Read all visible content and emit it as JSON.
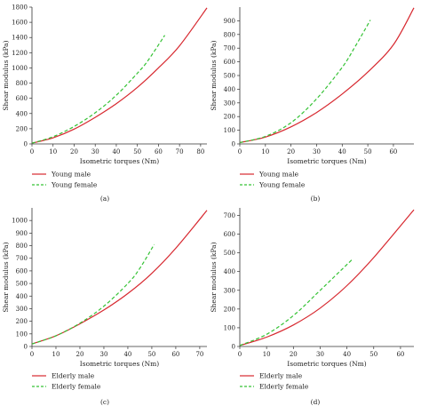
{
  "chart_data": [
    {
      "type": "line",
      "panel_label": "(a)",
      "xlabel": "Isometric torques (Nm)",
      "ylabel": "Shear modulus (kPa)",
      "xlim": [
        0,
        83
      ],
      "ylim": [
        0,
        1800
      ],
      "xticks": [
        0,
        10,
        20,
        30,
        40,
        50,
        60,
        70,
        80
      ],
      "yticks": [
        0,
        200,
        400,
        600,
        800,
        1000,
        1200,
        1400,
        1600,
        1800
      ],
      "legend_position": "bottom-left-outside",
      "series": [
        {
          "name": "Young male",
          "color": "#d7282f",
          "dash": "solid",
          "x": [
            0,
            10,
            20,
            30,
            40,
            50,
            60,
            70,
            83
          ],
          "y": [
            10,
            80,
            195,
            350,
            530,
            745,
            1000,
            1290,
            1790
          ]
        },
        {
          "name": "Young female",
          "color": "#35c235",
          "dash": "dashed",
          "x": [
            0,
            10,
            20,
            30,
            40,
            50,
            55,
            63
          ],
          "y": [
            10,
            95,
            230,
            410,
            640,
            930,
            1095,
            1430
          ]
        }
      ]
    },
    {
      "type": "line",
      "panel_label": "(b)",
      "xlabel": "Isometric torques (Nm)",
      "ylabel": "Shear modulus (kPa)",
      "xlim": [
        0,
        68
      ],
      "ylim": [
        0,
        1000
      ],
      "xticks": [
        0,
        10,
        20,
        30,
        40,
        50,
        60
      ],
      "yticks": [
        0,
        100,
        200,
        300,
        400,
        500,
        600,
        700,
        800,
        900
      ],
      "legend_position": "bottom-left-outside",
      "series": [
        {
          "name": "Young male",
          "color": "#d7282f",
          "dash": "solid",
          "x": [
            0,
            10,
            20,
            30,
            40,
            50,
            60,
            68
          ],
          "y": [
            10,
            50,
            125,
            230,
            365,
            525,
            725,
            995
          ]
        },
        {
          "name": "Young female",
          "color": "#35c235",
          "dash": "dashed",
          "x": [
            0,
            10,
            20,
            30,
            40,
            45,
            51
          ],
          "y": [
            10,
            55,
            155,
            330,
            560,
            710,
            905
          ]
        }
      ]
    },
    {
      "type": "line",
      "panel_label": "(c)",
      "xlabel": "Isometric torques (Nm)",
      "ylabel": "Shear modulus (kPa)",
      "xlim": [
        0,
        73
      ],
      "ylim": [
        0,
        1100
      ],
      "xticks": [
        0,
        10,
        20,
        30,
        40,
        50,
        60,
        70
      ],
      "yticks": [
        0,
        100,
        200,
        300,
        400,
        500,
        600,
        700,
        800,
        900,
        1000
      ],
      "legend_position": "bottom-left-outside",
      "series": [
        {
          "name": "Elderly male",
          "color": "#d7282f",
          "dash": "solid",
          "x": [
            0,
            10,
            20,
            30,
            40,
            50,
            60,
            73
          ],
          "y": [
            20,
            85,
            180,
            290,
            420,
            580,
            780,
            1080
          ]
        },
        {
          "name": "Elderly female",
          "color": "#35c235",
          "dash": "dashed",
          "x": [
            0,
            10,
            20,
            30,
            40,
            45,
            51
          ],
          "y": [
            20,
            85,
            185,
            320,
            500,
            620,
            810
          ]
        }
      ]
    },
    {
      "type": "line",
      "panel_label": "(d)",
      "xlabel": "Isometric torques (Nm)",
      "ylabel": "Shear modulus (kPa)",
      "xlim": [
        0,
        65
      ],
      "ylim": [
        0,
        740
      ],
      "xticks": [
        0,
        10,
        20,
        30,
        40,
        50,
        60
      ],
      "yticks": [
        0,
        100,
        200,
        300,
        400,
        500,
        600,
        700
      ],
      "legend_position": "bottom-left-outside",
      "series": [
        {
          "name": "Elderly male",
          "color": "#d7282f",
          "dash": "solid",
          "x": [
            0,
            10,
            20,
            30,
            40,
            50,
            65
          ],
          "y": [
            5,
            50,
            115,
            205,
            325,
            475,
            730
          ]
        },
        {
          "name": "Elderly female",
          "color": "#35c235",
          "dash": "dashed",
          "x": [
            0,
            10,
            20,
            30,
            42
          ],
          "y": [
            5,
            65,
            165,
            300,
            465
          ]
        }
      ]
    }
  ]
}
